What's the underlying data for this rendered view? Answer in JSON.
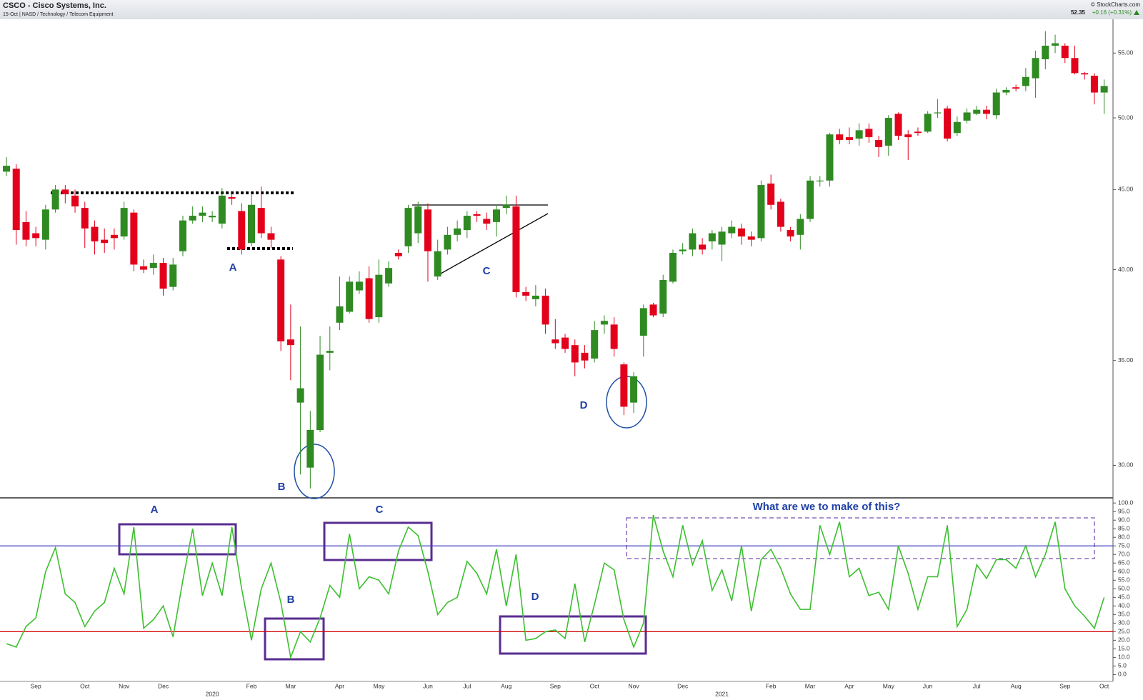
{
  "header": {
    "title": "CSCO - Cisco Systems, Inc.",
    "subtitle": "15-Oct | NASD / Technology / Telecom Equipment",
    "source": "© StockCharts.com",
    "last": "52.35",
    "change": "+0.16 (+0.31%)"
  },
  "chart_data": [
    {
      "type": "candlestick",
      "open": [
        46.2,
        46.4,
        42.9,
        42.2,
        41.8,
        43.7,
        45.0,
        44.6,
        43.8,
        42.6,
        41.8,
        42.1,
        42.0,
        43.5,
        40.2,
        40.1,
        40.4,
        39.0,
        41.1,
        43.0,
        43.3,
        43.2,
        42.8,
        44.5,
        43.6,
        41.6,
        43.8,
        42.2,
        40.6,
        36.1,
        32.9,
        29.9,
        31.6,
        35.4,
        37.0,
        37.6,
        38.8,
        39.5,
        37.3,
        39.2,
        41.0,
        41.4,
        42.2,
        43.7,
        39.6,
        41.2,
        42.1,
        42.4,
        43.4,
        43.1,
        42.9,
        43.8,
        43.9,
        38.7,
        38.3,
        38.5,
        36.1,
        36.2,
        35.8,
        35.4,
        35.1,
        36.9,
        36.9,
        34.8,
        32.9,
        36.3,
        38.0,
        37.5,
        39.3,
        41.1,
        41.2,
        41.5,
        41.7,
        41.5,
        42.2,
        42.5,
        42.0,
        41.9,
        45.4,
        44.2,
        42.4,
        42.1,
        43.1,
        45.6,
        45.6,
        48.8,
        48.6,
        48.5,
        49.2,
        48.4,
        48.0,
        50.3,
        48.8,
        49.0,
        49.0,
        50.4,
        50.7,
        48.9,
        49.8,
        50.3,
        50.6,
        50.2,
        51.9,
        52.3,
        52.4,
        53.0,
        54.5,
        55.6,
        55.6,
        54.6,
        53.4,
        53.2,
        51.9
      ],
      "high": [
        47.2,
        46.7,
        43.6,
        42.6,
        44.0,
        45.3,
        45.3,
        45.0,
        44.2,
        43.0,
        42.5,
        42.5,
        44.2,
        43.7,
        40.6,
        40.9,
        40.7,
        40.7,
        43.3,
        43.9,
        43.9,
        43.6,
        45.1,
        44.9,
        44.1,
        44.8,
        45.2,
        42.6,
        40.8,
        38.0,
        36.8,
        32.5,
        36.3,
        36.8,
        39.6,
        39.6,
        39.9,
        40.2,
        40.6,
        40.5,
        41.2,
        44.0,
        44.2,
        44.1,
        41.8,
        42.6,
        43.0,
        43.6,
        43.6,
        43.5,
        44.0,
        44.6,
        44.6,
        39.0,
        39.1,
        38.9,
        37.2,
        36.4,
        36.1,
        35.8,
        37.1,
        37.4,
        37.3,
        34.9,
        34.4,
        38.0,
        38.1,
        39.7,
        41.2,
        41.6,
        42.5,
        41.9,
        42.4,
        42.6,
        43.0,
        42.8,
        42.3,
        45.6,
        46.0,
        44.4,
        42.6,
        43.4,
        45.9,
        45.9,
        48.9,
        49.2,
        49.3,
        49.6,
        49.6,
        48.7,
        50.2,
        50.4,
        49.1,
        49.3,
        50.5,
        51.4,
        50.9,
        50.1,
        50.7,
        50.9,
        50.9,
        52.2,
        52.3,
        52.5,
        53.8,
        55.2,
        56.8,
        56.5,
        55.8,
        55.6,
        53.5,
        53.4,
        52.9
      ],
      "low": [
        45.9,
        41.5,
        41.4,
        41.4,
        41.2,
        43.5,
        44.1,
        43.5,
        41.3,
        40.9,
        41.0,
        41.2,
        41.8,
        39.9,
        39.8,
        39.7,
        38.5,
        38.8,
        40.8,
        42.8,
        42.9,
        42.9,
        42.5,
        44.0,
        40.9,
        41.4,
        41.9,
        41.3,
        35.5,
        34.0,
        29.6,
        29.0,
        31.5,
        34.5,
        36.6,
        37.5,
        38.6,
        37.0,
        37.0,
        39.0,
        40.6,
        41.0,
        41.6,
        39.3,
        39.4,
        40.9,
        41.7,
        41.9,
        42.9,
        42.4,
        42.0,
        43.4,
        38.4,
        38.2,
        37.9,
        36.4,
        35.6,
        35.4,
        34.2,
        34.6,
        34.9,
        36.4,
        35.2,
        32.3,
        32.4,
        35.2,
        37.3,
        37.3,
        39.2,
        40.9,
        40.8,
        40.9,
        41.2,
        40.5,
        41.9,
        41.5,
        41.4,
        41.7,
        43.7,
        42.3,
        41.7,
        41.2,
        42.9,
        45.2,
        45.2,
        48.1,
        48.1,
        48.0,
        48.2,
        47.2,
        47.3,
        48.4,
        47.0,
        48.7,
        48.9,
        50.0,
        48.3,
        48.7,
        49.6,
        50.2,
        49.9,
        49.9,
        51.7,
        52.0,
        52.0,
        51.5,
        53.7,
        55.0,
        54.2,
        53.3,
        52.9,
        51.0,
        50.3
      ],
      "close": [
        46.6,
        42.4,
        41.8,
        41.9,
        43.7,
        45.0,
        44.7,
        43.9,
        42.5,
        41.7,
        41.6,
        41.9,
        43.8,
        40.3,
        40.0,
        40.4,
        38.9,
        40.3,
        43.0,
        43.3,
        43.5,
        43.3,
        44.6,
        44.4,
        41.2,
        44.0,
        42.2,
        41.8,
        36.0,
        35.8,
        33.6,
        31.6,
        35.3,
        35.5,
        37.9,
        39.3,
        39.3,
        37.2,
        39.7,
        40.1,
        40.8,
        43.8,
        43.9,
        41.1,
        41.1,
        42.1,
        42.5,
        43.3,
        43.3,
        42.8,
        43.7,
        44.0,
        38.7,
        38.5,
        38.5,
        36.9,
        35.9,
        35.6,
        34.9,
        35.0,
        36.6,
        37.1,
        35.6,
        32.7,
        34.2,
        37.8,
        37.4,
        39.4,
        41.0,
        41.2,
        42.2,
        41.2,
        42.2,
        42.3,
        42.6,
        42.0,
        41.8,
        45.3,
        44.0,
        42.6,
        42.0,
        43.1,
        45.6,
        45.6,
        48.8,
        48.4,
        48.4,
        49.1,
        48.6,
        47.9,
        50.0,
        48.7,
        48.6,
        48.9,
        50.3,
        50.4,
        48.5,
        49.7,
        50.4,
        50.6,
        50.3,
        51.9,
        52.1,
        52.2,
        53.1,
        54.6,
        55.6,
        55.8,
        54.6,
        53.4,
        53.3,
        51.9,
        52.4
      ],
      "up_color": "#2f8a22",
      "down_color": "#e3001b",
      "ylim": [
        28.6,
        57.8
      ],
      "log_scale": true,
      "yticks": [
        {
          "value": 30,
          "label": "30.00"
        },
        {
          "value": 35,
          "label": "35.00"
        },
        {
          "value": 40,
          "label": "40.00"
        },
        {
          "value": 45,
          "label": "45.00"
        },
        {
          "value": 50,
          "label": "50.00"
        },
        {
          "value": 55,
          "label": "55.00"
        }
      ],
      "annotations": [
        "A",
        "B",
        "C",
        "D"
      ]
    },
    {
      "type": "line",
      "categories": [
        null,
        null,
        null,
        "Sep",
        null,
        null,
        null,
        null,
        "Oct",
        null,
        null,
        null,
        "Nov",
        null,
        null,
        null,
        "Dec",
        null,
        null,
        null,
        null,
        null,
        null,
        null,
        null,
        "Feb",
        null,
        null,
        null,
        "Mar",
        null,
        null,
        null,
        null,
        "Apr",
        null,
        null,
        null,
        "May",
        null,
        null,
        null,
        null,
        "Jun",
        null,
        null,
        null,
        "Jul",
        null,
        null,
        null,
        "Aug",
        null,
        null,
        null,
        null,
        "Sep",
        null,
        null,
        null,
        "Oct",
        null,
        null,
        null,
        "Nov",
        null,
        null,
        null,
        null,
        "Dec",
        null,
        null,
        null,
        null,
        null,
        null,
        null,
        null,
        "Feb",
        null,
        null,
        null,
        "Mar",
        null,
        null,
        null,
        "Apr",
        null,
        null,
        null,
        "May",
        null,
        null,
        null,
        "Jun",
        null,
        null,
        null,
        null,
        "Jul",
        null,
        null,
        null,
        "Aug",
        null,
        null,
        null,
        null,
        "Sep",
        null,
        null,
        null,
        "Oct"
      ],
      "year_labels": [
        null,
        null,
        null,
        null,
        null,
        null,
        null,
        null,
        null,
        null,
        null,
        null,
        null,
        null,
        null,
        null,
        null,
        null,
        null,
        null,
        null,
        "2020",
        null,
        null,
        null,
        null,
        null,
        null,
        null,
        null,
        null,
        null,
        null,
        null,
        null,
        null,
        null,
        null,
        null,
        null,
        null,
        null,
        null,
        null,
        null,
        null,
        null,
        null,
        null,
        null,
        null,
        null,
        null,
        null,
        null,
        null,
        null,
        null,
        null,
        null,
        null,
        null,
        null,
        null,
        null,
        null,
        null,
        null,
        null,
        null,
        null,
        null,
        null,
        "2021",
        null,
        null,
        null,
        null,
        null,
        null,
        null,
        null,
        null,
        null,
        null,
        null,
        null,
        null,
        null,
        null,
        null,
        null,
        null,
        null,
        null,
        null,
        null,
        null,
        null,
        null,
        null,
        null,
        null,
        null,
        null,
        null,
        null,
        null,
        null,
        null,
        null,
        null,
        null
      ],
      "values": [
        18,
        16,
        28,
        33,
        60,
        74,
        47,
        42,
        28,
        37,
        42,
        62,
        47,
        86,
        27,
        32,
        40,
        22,
        55,
        85,
        46,
        65,
        46,
        86,
        50,
        20,
        50,
        65,
        42,
        10,
        25,
        19,
        33,
        52,
        45,
        82,
        50,
        57,
        55,
        47,
        72,
        86,
        81,
        60,
        35,
        42,
        45,
        66,
        59,
        47,
        73,
        40,
        70,
        20,
        21,
        25,
        26,
        21,
        53,
        19,
        41,
        65,
        61,
        32,
        16,
        30,
        93,
        72,
        57,
        87,
        64,
        78,
        49,
        61,
        43,
        75,
        37,
        67,
        73,
        62,
        47,
        38,
        38,
        87,
        70,
        89,
        57,
        62,
        46,
        48,
        38,
        75,
        59,
        38,
        57,
        57,
        87,
        28,
        38,
        64,
        56,
        67,
        67,
        62,
        75,
        57,
        70,
        89,
        50,
        40,
        34,
        27,
        45
      ],
      "color": "#3cbf2f",
      "ylim": [
        -4,
        103
      ],
      "yticks": [
        {
          "value": 0,
          "label": "0.0"
        },
        {
          "value": 5,
          "label": "5.0"
        },
        {
          "value": 10,
          "label": "10.0"
        },
        {
          "value": 15,
          "label": "15.0"
        },
        {
          "value": 20,
          "label": "20.0"
        },
        {
          "value": 25,
          "label": "25.0"
        },
        {
          "value": 30,
          "label": "30.0"
        },
        {
          "value": 35,
          "label": "35.0"
        },
        {
          "value": 40,
          "label": "40.0"
        },
        {
          "value": 45,
          "label": "45.0"
        },
        {
          "value": 50,
          "label": "50.0"
        },
        {
          "value": 55,
          "label": "55.0"
        },
        {
          "value": 60,
          "label": "60.0"
        },
        {
          "value": 65,
          "label": "65.0"
        },
        {
          "value": 70,
          "label": "70.0"
        },
        {
          "value": 75,
          "label": "75.0"
        },
        {
          "value": 80,
          "label": "80.0"
        },
        {
          "value": 85,
          "label": "85.0"
        },
        {
          "value": 90,
          "label": "90.0"
        },
        {
          "value": 95,
          "label": "95.0"
        },
        {
          "value": 100,
          "label": "100.0"
        }
      ],
      "reference_lines": [
        {
          "value": 75,
          "color": "#3b3bbf"
        },
        {
          "value": 25,
          "color": "#d40000"
        }
      ],
      "annotations": [
        "A",
        "B",
        "C",
        "D",
        "What are we to make of this?"
      ]
    }
  ]
}
